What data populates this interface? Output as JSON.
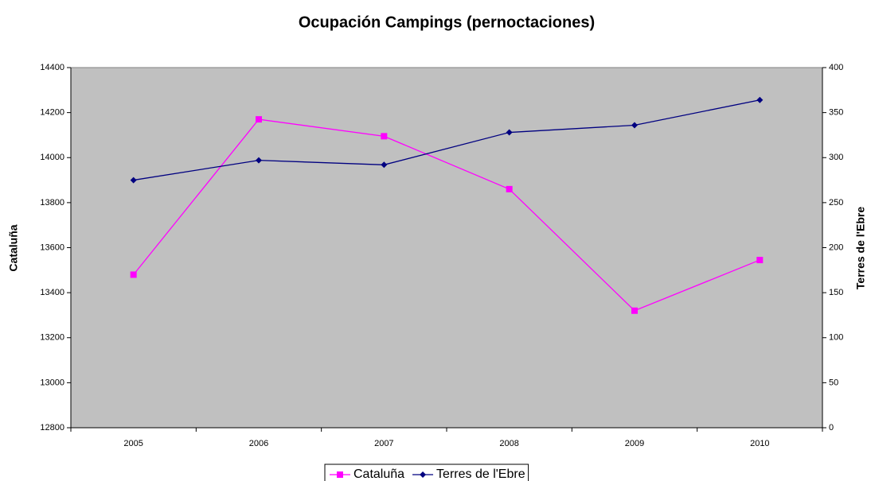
{
  "chart_data": {
    "type": "line",
    "title": "Ocupación Campings (pernoctaciones)",
    "ylabel": "Cataluña",
    "y2label": "Terres de l'Ebre",
    "categories": [
      "2005",
      "2006",
      "2007",
      "2008",
      "2009",
      "2010"
    ],
    "series": [
      {
        "name": "Cataluña",
        "color": "#ff00ff",
        "marker": "square",
        "values": [
          13480,
          14170,
          14095,
          13860,
          13320,
          13545
        ]
      },
      {
        "name": "Terres de l'Ebre",
        "color": "#000080",
        "marker": "diamond",
        "axis": "y2",
        "values": [
          275,
          297,
          292,
          328,
          336,
          364
        ]
      }
    ],
    "ylim": [
      12800,
      14400
    ],
    "yticks": [
      12800,
      13000,
      13200,
      13400,
      13600,
      13800,
      14000,
      14200,
      14400
    ],
    "y2lim": [
      0,
      400
    ],
    "y2ticks": [
      0,
      50,
      100,
      150,
      200,
      250,
      300,
      350,
      400
    ],
    "plot_background": "#c0c0c0",
    "legend": "bottom"
  }
}
